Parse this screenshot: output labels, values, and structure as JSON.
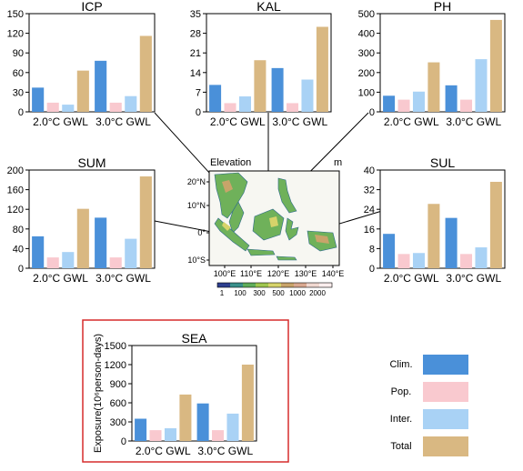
{
  "colors": {
    "clim": "#4a90d9",
    "pop": "#f9c9cf",
    "inter": "#a9d2f5",
    "total": "#d9b882",
    "highlight_box": "#d62c2c",
    "connector": "#000000"
  },
  "legend": {
    "items": [
      {
        "label": "Clim.",
        "color": "#4a90d9"
      },
      {
        "label": "Pop.",
        "color": "#f9c9cf"
      },
      {
        "label": "Inter.",
        "color": "#a9d2f5"
      },
      {
        "label": "Total",
        "color": "#d9b882"
      }
    ]
  },
  "map": {
    "title": "Elevation",
    "unit": "m",
    "lat_labels": [
      "20°N",
      "10°N",
      "0°",
      "10°S"
    ],
    "lon_labels": [
      "100°E",
      "110°E",
      "120°E",
      "130°E",
      "140°E"
    ],
    "colorbar_labels": [
      "1",
      "100",
      "300",
      "500",
      "1000",
      "2000"
    ],
    "colorbar_colors": [
      "#2d3f8f",
      "#3a8f8a",
      "#5fad5a",
      "#9fc64e",
      "#d6d36a",
      "#c8a46a",
      "#d9a890",
      "#f0d8d0",
      "#fbeeee"
    ]
  },
  "chart_data": [
    {
      "type": "bar",
      "title": "ICP",
      "categories": [
        "2.0°C GWL",
        "3.0°C GWL"
      ],
      "series": [
        {
          "name": "Clim.",
          "values": [
            37,
            78
          ]
        },
        {
          "name": "Pop.",
          "values": [
            14,
            14
          ]
        },
        {
          "name": "Inter.",
          "values": [
            11,
            24
          ]
        },
        {
          "name": "Total",
          "values": [
            63,
            116
          ]
        }
      ],
      "ylim": [
        0,
        150
      ],
      "yticks": [
        0,
        30,
        60,
        90,
        120,
        150
      ],
      "ylabel": ""
    },
    {
      "type": "bar",
      "title": "KAL",
      "categories": [
        "2.0°C GWL",
        "3.0°C GWL"
      ],
      "series": [
        {
          "name": "Clim.",
          "values": [
            9.6,
            15.6
          ]
        },
        {
          "name": "Pop.",
          "values": [
            3.1,
            3.1
          ]
        },
        {
          "name": "Inter.",
          "values": [
            5.5,
            11.5
          ]
        },
        {
          "name": "Total",
          "values": [
            18.4,
            30.3
          ]
        }
      ],
      "ylim": [
        0,
        35
      ],
      "yticks": [
        0,
        7,
        14,
        21,
        28,
        35
      ],
      "ylabel": ""
    },
    {
      "type": "bar",
      "title": "PH",
      "categories": [
        "2.0°C GWL",
        "3.0°C GWL"
      ],
      "series": [
        {
          "name": "Clim.",
          "values": [
            82,
            135
          ]
        },
        {
          "name": "Pop.",
          "values": [
            62,
            62
          ]
        },
        {
          "name": "Inter.",
          "values": [
            103,
            268
          ]
        },
        {
          "name": "Total",
          "values": [
            252,
            468
          ]
        }
      ],
      "ylim": [
        0,
        500
      ],
      "yticks": [
        0,
        100,
        200,
        300,
        400,
        500
      ],
      "ylabel": ""
    },
    {
      "type": "bar",
      "title": "SUM",
      "categories": [
        "2.0°C GWL",
        "3.0°C GWL"
      ],
      "series": [
        {
          "name": "Clim.",
          "values": [
            65,
            103
          ]
        },
        {
          "name": "Pop.",
          "values": [
            22,
            22
          ]
        },
        {
          "name": "Inter.",
          "values": [
            33,
            60
          ]
        },
        {
          "name": "Total",
          "values": [
            121,
            187
          ]
        }
      ],
      "ylim": [
        0,
        200
      ],
      "yticks": [
        0,
        40,
        80,
        120,
        160,
        200
      ],
      "ylabel": ""
    },
    {
      "type": "bar",
      "title": "SUL",
      "categories": [
        "2.0°C GWL",
        "3.0°C GWL"
      ],
      "series": [
        {
          "name": "Clim.",
          "values": [
            14,
            20.5
          ]
        },
        {
          "name": "Pop.",
          "values": [
            5.8,
            5.8
          ]
        },
        {
          "name": "Inter.",
          "values": [
            6.2,
            8.5
          ]
        },
        {
          "name": "Total",
          "values": [
            26.2,
            35.2
          ]
        }
      ],
      "ylim": [
        0,
        40
      ],
      "yticks": [
        0,
        8,
        16,
        24,
        32,
        40
      ],
      "ylabel": ""
    },
    {
      "type": "bar",
      "title": "SEA",
      "categories": [
        "2.0°C GWL",
        "3.0°C GWL"
      ],
      "series": [
        {
          "name": "Clim.",
          "values": [
            350,
            590
          ]
        },
        {
          "name": "Pop.",
          "values": [
            170,
            170
          ]
        },
        {
          "name": "Inter.",
          "values": [
            200,
            430
          ]
        },
        {
          "name": "Total",
          "values": [
            730,
            1200
          ]
        }
      ],
      "ylim": [
        0,
        1500
      ],
      "yticks": [
        0,
        300,
        600,
        900,
        1200,
        1500
      ],
      "ylabel": "Exposure(10⁶person-days)"
    }
  ]
}
